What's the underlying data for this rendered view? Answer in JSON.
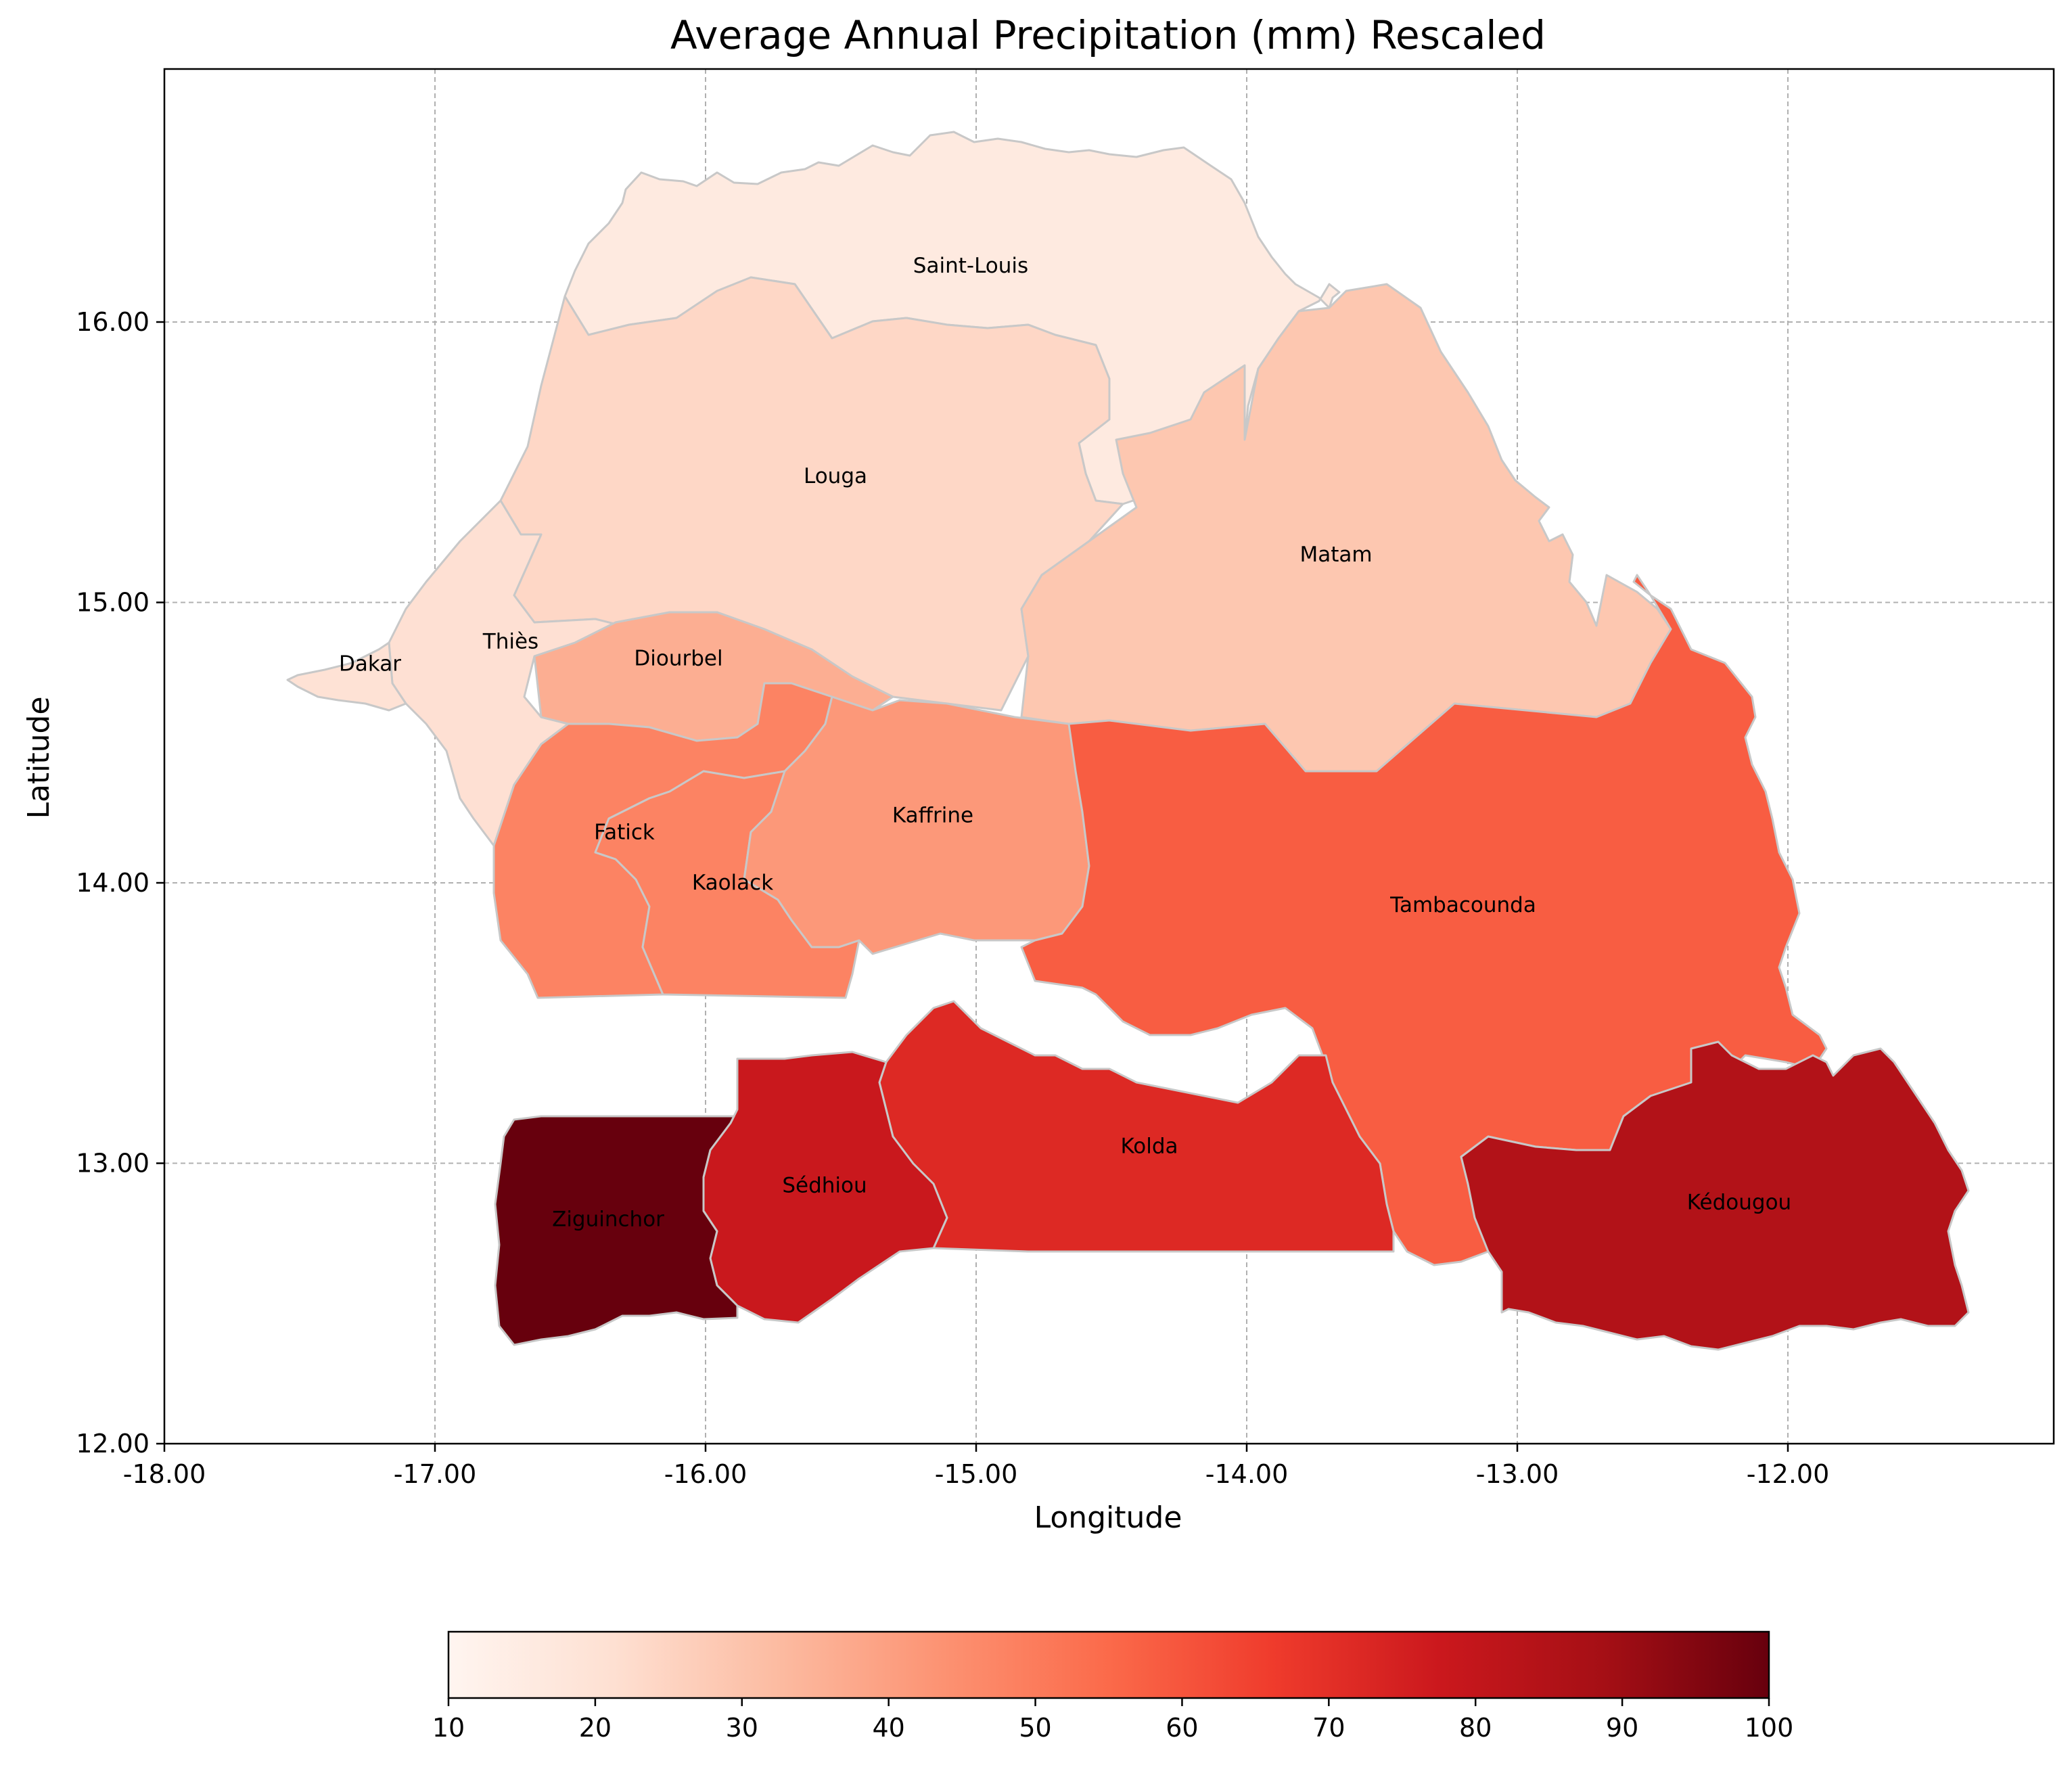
{
  "chart_data": {
    "type": "choropleth",
    "title": "Average Annual Precipitation (mm) Rescaled",
    "xlabel": "Longitude",
    "ylabel": "Latitude",
    "xlim": [
      -18.0,
      -11.0
    ],
    "ylim": [
      12.0,
      16.9
    ],
    "x_ticks": [
      "-18.00",
      "-17.00",
      "-16.00",
      "-15.00",
      "-14.00",
      "-13.00",
      "-12.00"
    ],
    "y_ticks": [
      "12.00",
      "13.00",
      "14.00",
      "15.00",
      "16.00"
    ],
    "grid": true,
    "colormap": "Reds",
    "colorbar": {
      "min": 10,
      "max": 100,
      "ticks": [
        "10",
        "20",
        "30",
        "40",
        "50",
        "60",
        "70",
        "80",
        "90",
        "100"
      ],
      "placement": "bottom"
    },
    "regions": [
      {
        "name": "Saint-Louis",
        "value": 16,
        "label_lon": -15.02,
        "label_lat": 16.2
      },
      {
        "name": "Louga",
        "value": 24,
        "label_lon": -15.52,
        "label_lat": 15.45
      },
      {
        "name": "Matam",
        "value": 29,
        "label_lon": -13.67,
        "label_lat": 15.17
      },
      {
        "name": "Dakar",
        "value": 20,
        "label_lon": -17.24,
        "label_lat": 14.78
      },
      {
        "name": "Thiès",
        "value": 21,
        "label_lon": -16.72,
        "label_lat": 14.86
      },
      {
        "name": "Diourbel",
        "value": 36,
        "label_lon": -16.1,
        "label_lat": 14.8
      },
      {
        "name": "Fatick",
        "value": 48,
        "label_lon": -16.3,
        "label_lat": 14.18
      },
      {
        "name": "Kaolack",
        "value": 48,
        "label_lon": -15.9,
        "label_lat": 14.0
      },
      {
        "name": "Kaffrine",
        "value": 42,
        "label_lon": -15.16,
        "label_lat": 14.24
      },
      {
        "name": "Tambacounda",
        "value": 58,
        "label_lon": -13.2,
        "label_lat": 13.92
      },
      {
        "name": "Kolda",
        "value": 72,
        "label_lon": -14.36,
        "label_lat": 13.06
      },
      {
        "name": "Sédhiou",
        "value": 78,
        "label_lon": -15.56,
        "label_lat": 12.92
      },
      {
        "name": "Ziguinchor",
        "value": 100,
        "label_lon": -16.36,
        "label_lat": 12.8
      },
      {
        "name": "Kédougou",
        "value": 85,
        "label_lon": -12.18,
        "label_lat": 12.86
      }
    ]
  }
}
